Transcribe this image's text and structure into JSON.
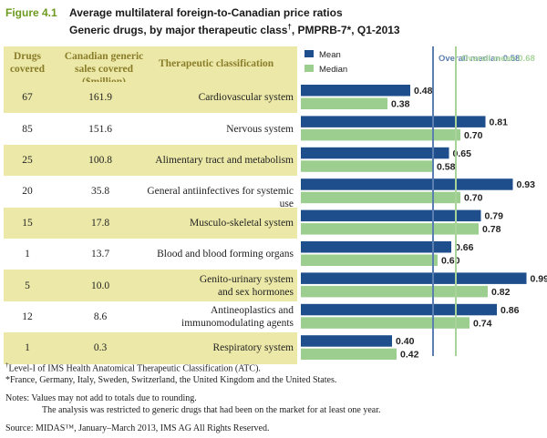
{
  "figure": {
    "label": "Figure 4.1",
    "title_line1": "Average multilateral foreign-to-Canadian price ratios",
    "title_line2_pre": "Generic drugs, by major therapeutic class",
    "title_line2_sup": "†",
    "title_line2_post": ", PMPRB-7*, Q1-2013"
  },
  "table": {
    "headers": {
      "drugs": "Drugs covered",
      "sales": "Canadian generic sales covered ($million)",
      "therapeutic": "Therapeutic classification"
    },
    "rows": [
      {
        "drugs": "67",
        "sales": "161.9",
        "class_line1": "Cardiovascular system",
        "class_line2": ""
      },
      {
        "drugs": "85",
        "sales": "151.6",
        "class_line1": "Nervous system",
        "class_line2": ""
      },
      {
        "drugs": "25",
        "sales": "100.8",
        "class_line1": "Alimentary tract and metabolism",
        "class_line2": ""
      },
      {
        "drugs": "20",
        "sales": "35.8",
        "class_line1": "General antiinfectives for systemic use",
        "class_line2": ""
      },
      {
        "drugs": "15",
        "sales": "17.8",
        "class_line1": "Musculo-skeletal system",
        "class_line2": ""
      },
      {
        "drugs": "1",
        "sales": "13.7",
        "class_line1": "Blood and blood forming organs",
        "class_line2": ""
      },
      {
        "drugs": "5",
        "sales": "10.0",
        "class_line1": "Genito-urinary system",
        "class_line2": "and sex hormones"
      },
      {
        "drugs": "12",
        "sales": "8.6",
        "class_line1": "Antineoplastics and",
        "class_line2": "immunomodulating agents"
      },
      {
        "drugs": "1",
        "sales": "0.3",
        "class_line1": "Respiratory system",
        "class_line2": ""
      }
    ]
  },
  "chart_data": {
    "type": "bar",
    "orientation": "horizontal",
    "categories": [
      "Cardiovascular system",
      "Nervous system",
      "Alimentary tract and metabolism",
      "General antiinfectives for systemic use",
      "Musculo-skeletal system",
      "Blood and blood forming organs",
      "Genito-urinary system and sex hormones",
      "Antineoplastics and immunomodulating agents",
      "Respiratory system"
    ],
    "series": [
      {
        "name": "Mean",
        "color": "#1f4e8c",
        "values": [
          0.48,
          0.81,
          0.65,
          0.93,
          0.79,
          0.66,
          0.99,
          0.86,
          0.4
        ]
      },
      {
        "name": "Median",
        "color": "#9ccf8f",
        "values": [
          0.38,
          0.7,
          0.58,
          0.7,
          0.78,
          0.6,
          0.82,
          0.74,
          0.42
        ]
      }
    ],
    "value_labels_mean": [
      "0.48",
      "0.81",
      "0.65",
      "0.93",
      "0.79",
      "0.66",
      "0.99",
      "0.86",
      "0.40"
    ],
    "value_labels_median": [
      "0.38",
      "0.70",
      "0.58",
      "0.70",
      "0.78",
      "0.60",
      "0.82",
      "0.74",
      "0.42"
    ],
    "reference_lines": [
      {
        "label": "Overall median 0.58",
        "value": 0.58,
        "color": "#5b7fb0"
      },
      {
        "label": "Overall mean 0.68",
        "value": 0.68,
        "color": "#a8d49a"
      }
    ],
    "legend": [
      {
        "label": "Mean",
        "color": "#1f4e8c"
      },
      {
        "label": "Median",
        "color": "#9ccf8f"
      }
    ],
    "xlim": [
      0,
      1.0
    ]
  },
  "notes": {
    "dagger_sup": "†",
    "dagger_text": "Level-I of IMS Health Anatomical Therapeutic Classification (ATC).",
    "star_text": "*France, Germany, Italy, Sweden, Switzerland, the United Kingdom and the United States.",
    "notes_line1": "Notes: Values may not add to totals due to rounding.",
    "notes_line2": "The analysis was restricted to generic drugs that had been on the market for at least one year.",
    "source": "Source: MIDAS™, January–March 2013, IMS AG All Rights Reserved."
  }
}
